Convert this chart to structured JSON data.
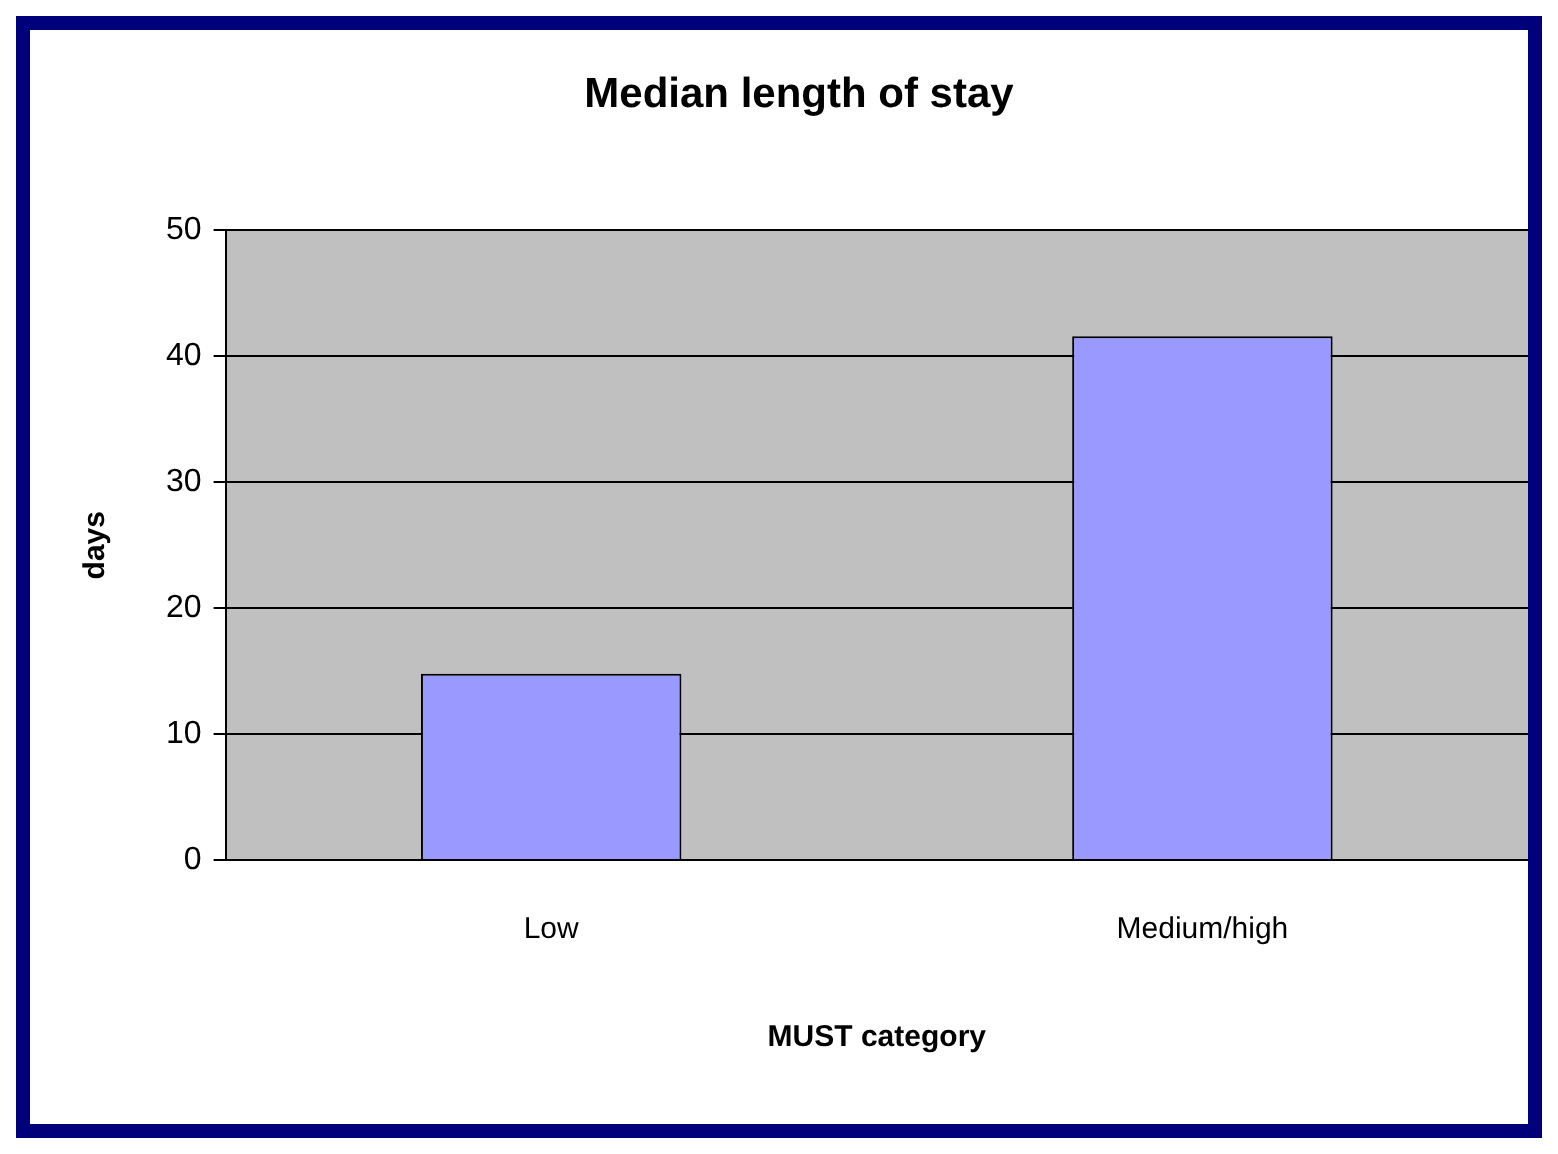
{
  "chart_data": {
    "type": "bar",
    "title": "Median length of stay",
    "xlabel": "MUST category",
    "ylabel": "days",
    "categories": [
      "Low",
      "Medium/high"
    ],
    "values": [
      14.8,
      41.6
    ],
    "color": "#9999ff",
    "ylim": [
      0,
      50
    ],
    "yticks": [
      0,
      10,
      20,
      30,
      40,
      50
    ],
    "grid": "y",
    "legend": false
  }
}
